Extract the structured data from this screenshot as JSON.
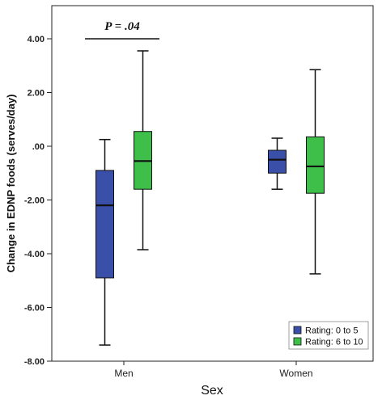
{
  "chart_data": {
    "type": "boxplot",
    "xlabel": "Sex",
    "ylabel": "Change in EDNP foods (serves/day)",
    "ylim": [
      -8,
      4.6
    ],
    "yticks": [
      {
        "value": 4,
        "label": "4.00"
      },
      {
        "value": 2,
        "label": "2.00"
      },
      {
        "value": 0,
        "label": ".00"
      },
      {
        "value": -2,
        "label": "-2.00"
      },
      {
        "value": -4,
        "label": "-4.00"
      },
      {
        "value": -6,
        "label": "-6.00"
      },
      {
        "value": -8,
        "label": "-8.00"
      }
    ],
    "categories": [
      "Men",
      "Women"
    ],
    "grid": false,
    "legend_position": "bottom-right",
    "series": [
      {
        "name": "Rating: 0 to 5",
        "color": "#3a4fa8",
        "boxes": [
          {
            "whisker_low": -7.4,
            "q1": -4.9,
            "median": -2.2,
            "q3": -0.9,
            "whisker_high": 0.25
          },
          {
            "whisker_low": -1.6,
            "q1": -1.0,
            "median": -0.5,
            "q3": -0.15,
            "whisker_high": 0.3
          }
        ]
      },
      {
        "name": "Rating: 6 to 10",
        "color": "#3dbf4a",
        "boxes": [
          {
            "whisker_low": -3.85,
            "q1": -1.6,
            "median": -0.55,
            "q3": 0.55,
            "whisker_high": 3.55
          },
          {
            "whisker_low": -4.75,
            "q1": -1.75,
            "median": -0.75,
            "q3": 0.35,
            "whisker_high": 2.85
          }
        ]
      }
    ],
    "annotation": {
      "text": "P = .04",
      "from_value": 4,
      "category": "Men"
    }
  }
}
